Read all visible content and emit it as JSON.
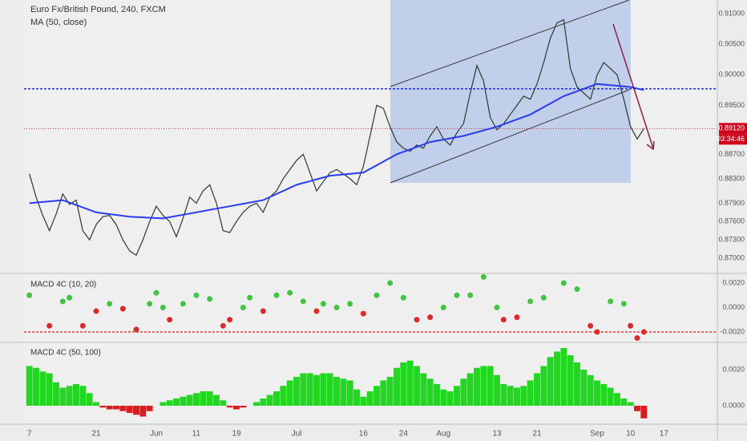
{
  "chart_data": [
    {
      "type": "line",
      "title": "Euro Fx/British Pound, 240, FXCM",
      "subtitle": "MA (50, close)",
      "xlim": [
        -0.8,
        103
      ],
      "ylim": [
        0.86764,
        0.91223
      ],
      "yticks": [
        {
          "value": 0.91,
          "label": "0.91000"
        },
        {
          "value": 0.905,
          "label": "0.90500"
        },
        {
          "value": 0.9,
          "label": "0.90000"
        },
        {
          "value": 0.895,
          "label": "0.89500"
        },
        {
          "value": 0.887,
          "label": "0.88700"
        },
        {
          "value": 0.883,
          "label": "0.88300"
        },
        {
          "value": 0.879,
          "label": "0.87900"
        },
        {
          "value": 0.876,
          "label": "0.87600"
        },
        {
          "value": 0.873,
          "label": "0.87300"
        },
        {
          "value": 0.87,
          "label": "0.87000"
        }
      ],
      "grid": true,
      "hlines": [
        {
          "value": 0.8977,
          "color": "#2430e0"
        }
      ],
      "last_price": {
        "value": 0.8912,
        "label": "0.89120",
        "color": "#d0021b"
      },
      "countdown": "03:34:46",
      "series": [
        {
          "color": "#2b3a2b",
          "x": [
            0,
            1,
            2,
            3,
            4,
            5,
            6,
            7,
            8,
            9,
            10,
            11,
            12,
            13,
            14,
            15,
            16,
            17,
            18,
            19,
            20,
            21,
            22,
            23,
            24,
            25,
            26,
            27,
            28,
            29,
            30,
            31,
            32,
            33,
            34,
            35,
            36,
            37,
            38,
            39,
            40,
            41,
            42,
            43,
            44,
            45,
            46,
            47,
            48,
            49,
            50,
            51,
            52,
            53,
            54,
            55,
            56,
            57,
            58,
            59,
            60,
            61,
            62,
            63,
            64,
            65,
            66,
            67,
            68,
            69,
            70,
            71,
            72,
            73,
            74,
            75,
            76,
            77,
            78,
            79,
            80,
            81,
            82,
            83,
            84,
            85,
            86,
            87,
            88,
            89,
            90,
            91,
            92
          ],
          "values": [
            0.8838,
            0.88,
            0.877,
            0.8745,
            0.8772,
            0.8805,
            0.8788,
            0.8795,
            0.8745,
            0.873,
            0.8755,
            0.8768,
            0.877,
            0.8755,
            0.873,
            0.8712,
            0.8705,
            0.873,
            0.876,
            0.8785,
            0.877,
            0.876,
            0.8735,
            0.8765,
            0.88,
            0.879,
            0.881,
            0.882,
            0.879,
            0.8745,
            0.8742,
            0.876,
            0.8775,
            0.8785,
            0.879,
            0.8775,
            0.88,
            0.881,
            0.883,
            0.8845,
            0.886,
            0.887,
            0.884,
            0.881,
            0.8825,
            0.884,
            0.8845,
            0.8838,
            0.883,
            0.882,
            0.885,
            0.89,
            0.895,
            0.8945,
            0.8915,
            0.889,
            0.888,
            0.8875,
            0.8885,
            0.888,
            0.89,
            0.8915,
            0.8895,
            0.8885,
            0.8905,
            0.892,
            0.897,
            0.9015,
            0.899,
            0.893,
            0.891,
            0.892,
            0.8935,
            0.895,
            0.8965,
            0.896,
            0.8985,
            0.902,
            0.906,
            0.9085,
            0.909,
            0.901,
            0.898,
            0.897,
            0.896,
            0.9,
            0.902,
            0.901,
            0.9,
            0.896,
            0.8915,
            0.8895,
            0.8912
          ]
        },
        {
          "color": "#2a3cf0",
          "x": [
            0,
            5,
            10,
            15,
            20,
            25,
            30,
            35,
            40,
            45,
            50,
            55,
            60,
            65,
            70,
            75,
            80,
            85,
            90,
            92
          ],
          "values": [
            0.879,
            0.8795,
            0.8775,
            0.8768,
            0.8765,
            0.8775,
            0.8785,
            0.8795,
            0.882,
            0.8835,
            0.884,
            0.887,
            0.889,
            0.89,
            0.8915,
            0.8935,
            0.8965,
            0.8985,
            0.898,
            0.8975
          ]
        }
      ]
    },
    {
      "type": "scatter",
      "title": "MACD 4C (10, 20)",
      "ylim": [
        -0.00279,
        0.00272
      ],
      "yticks": [
        {
          "value": 0.002,
          "label": "0.0020"
        },
        {
          "value": 0,
          "label": "0.0000"
        },
        {
          "value": -0.002,
          "label": "-0.0020"
        }
      ],
      "hlines": [
        {
          "value": -0.002,
          "color": "#e53935"
        }
      ],
      "color_positive": "#43c443",
      "color_negative": "#d92b2b",
      "x": [
        0,
        3,
        5,
        6,
        8,
        10,
        12,
        14,
        16,
        18,
        19,
        20,
        21,
        23,
        25,
        27,
        29,
        30,
        32,
        33,
        35,
        37,
        39,
        41,
        43,
        44,
        46,
        48,
        50,
        52,
        54,
        56,
        58,
        60,
        62,
        64,
        66,
        68,
        70,
        71,
        73,
        75,
        77,
        80,
        82,
        84,
        85,
        87,
        89,
        90,
        91,
        92
      ],
      "values": [
        0.001,
        -0.0015,
        0.0005,
        0.0008,
        -0.0015,
        -0.0003,
        0.0003,
        -0.0001,
        -0.0018,
        0.0003,
        0.0012,
        0,
        -0.001,
        0.0003,
        0.001,
        0.0007,
        -0.0015,
        -0.001,
        0,
        0.0008,
        -0.0003,
        0.001,
        0.0012,
        0.0005,
        -0.0003,
        0.0003,
        0,
        0.0003,
        -0.0005,
        0.001,
        0.002,
        0.0008,
        -0.001,
        -0.0008,
        0,
        0.001,
        0.001,
        0.0025,
        0,
        -0.001,
        -0.0008,
        0.0005,
        0.0008,
        0.002,
        0.0015,
        -0.0015,
        -0.002,
        0.0005,
        0.0003,
        -0.0015,
        -0.0025,
        -0.002
      ]
    },
    {
      "type": "bar",
      "title": "MACD 4C (50, 100)",
      "ylim": [
        -0.000978,
        0.003467
      ],
      "yticks": [
        {
          "value": 0.002,
          "label": "0.0020"
        },
        {
          "value": 0,
          "label": "0.0000"
        }
      ],
      "color_positive": "#22d622",
      "color_negative": "#d81e1e",
      "xticks": [
        {
          "value": 0,
          "label": "7"
        },
        {
          "value": 10,
          "label": "21"
        },
        {
          "value": 19,
          "label": "Jun"
        },
        {
          "value": 25,
          "label": "11"
        },
        {
          "value": 31,
          "label": "19"
        },
        {
          "value": 40,
          "label": "Jul"
        },
        {
          "value": 50,
          "label": "16"
        },
        {
          "value": 56,
          "label": "24"
        },
        {
          "value": 62,
          "label": "Aug"
        },
        {
          "value": 70,
          "label": "13"
        },
        {
          "value": 76,
          "label": "21"
        },
        {
          "value": 85,
          "label": "Sep"
        },
        {
          "value": 90,
          "label": "10"
        },
        {
          "value": 95,
          "label": "17"
        }
      ],
      "x": [
        0,
        1,
        2,
        3,
        4,
        5,
        6,
        7,
        8,
        9,
        10,
        11,
        12,
        13,
        14,
        15,
        16,
        17,
        18,
        19,
        20,
        21,
        22,
        23,
        24,
        25,
        26,
        27,
        28,
        29,
        30,
        31,
        32,
        33,
        34,
        35,
        36,
        37,
        38,
        39,
        40,
        41,
        42,
        43,
        44,
        45,
        46,
        47,
        48,
        49,
        50,
        51,
        52,
        53,
        54,
        55,
        56,
        57,
        58,
        59,
        60,
        61,
        62,
        63,
        64,
        65,
        66,
        67,
        68,
        69,
        70,
        71,
        72,
        73,
        74,
        75,
        76,
        77,
        78,
        79,
        80,
        81,
        82,
        83,
        84,
        85,
        86,
        87,
        88,
        89,
        90,
        91,
        92
      ],
      "values": [
        0.0022,
        0.0021,
        0.0019,
        0.0018,
        0.0013,
        0.001,
        0.0011,
        0.0012,
        0.0011,
        0.0007,
        0.0002,
        -0.0001,
        -0.0002,
        -0.0002,
        -0.0003,
        -0.0004,
        -0.0005,
        -0.0006,
        -0.0003,
        0,
        0.0002,
        0.0003,
        0.0004,
        0.0005,
        0.0006,
        0.0007,
        0.0008,
        0.0008,
        0.0006,
        0.0003,
        -0.0001,
        -0.0002,
        -0.0001,
        0,
        0.0002,
        0.0004,
        0.0006,
        0.0008,
        0.0011,
        0.0014,
        0.0016,
        0.0018,
        0.0018,
        0.0017,
        0.0018,
        0.0018,
        0.0016,
        0.0015,
        0.0014,
        0.0009,
        0.0005,
        0.0008,
        0.0011,
        0.0014,
        0.0016,
        0.0021,
        0.0024,
        0.0025,
        0.0022,
        0.0018,
        0.0015,
        0.0012,
        0.0009,
        0.0008,
        0.0011,
        0.0015,
        0.0018,
        0.0021,
        0.0022,
        0.0022,
        0.0017,
        0.0012,
        0.0011,
        0.001,
        0.0011,
        0.0014,
        0.0018,
        0.0022,
        0.0027,
        0.003,
        0.0032,
        0.0028,
        0.0024,
        0.002,
        0.0017,
        0.0014,
        0.0012,
        0.001,
        0.0007,
        0.0004,
        0.0002,
        -0.0003,
        -0.0007
      ]
    }
  ]
}
